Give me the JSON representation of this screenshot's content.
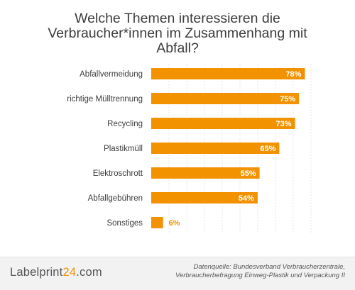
{
  "colors": {
    "bar": "#f39200",
    "value_inside": "#ffffff",
    "value_outside": "#f39200",
    "grid": "#d9d9d9",
    "text": "#3c3c3c"
  },
  "chart_data": {
    "type": "bar",
    "orientation": "horizontal",
    "title": "Welche Themen interessieren die Verbraucher*innen im Zusammenhang mit Abfall?",
    "categories": [
      "Abfallvermeidung",
      "richtige Mülltrennung",
      "Recycling",
      "Plastikmüll",
      "Elektroschrott",
      "Abfallgebühren",
      "Sonstiges"
    ],
    "values": [
      78,
      75,
      73,
      65,
      55,
      54,
      6
    ],
    "value_labels": [
      "78%",
      "75%",
      "73%",
      "65%",
      "55%",
      "54%",
      "6%"
    ],
    "xlim": [
      0,
      80
    ],
    "grid": true
  },
  "footer": {
    "logo_main": "Labelprint",
    "logo_accent": "24",
    "logo_suffix": ".com",
    "source_line1": "Datenquelle: Bundesverband Verbraucherzentrale,",
    "source_line2": "Verbraucherbefragung Einweg-Plastik und Verpackung II"
  }
}
